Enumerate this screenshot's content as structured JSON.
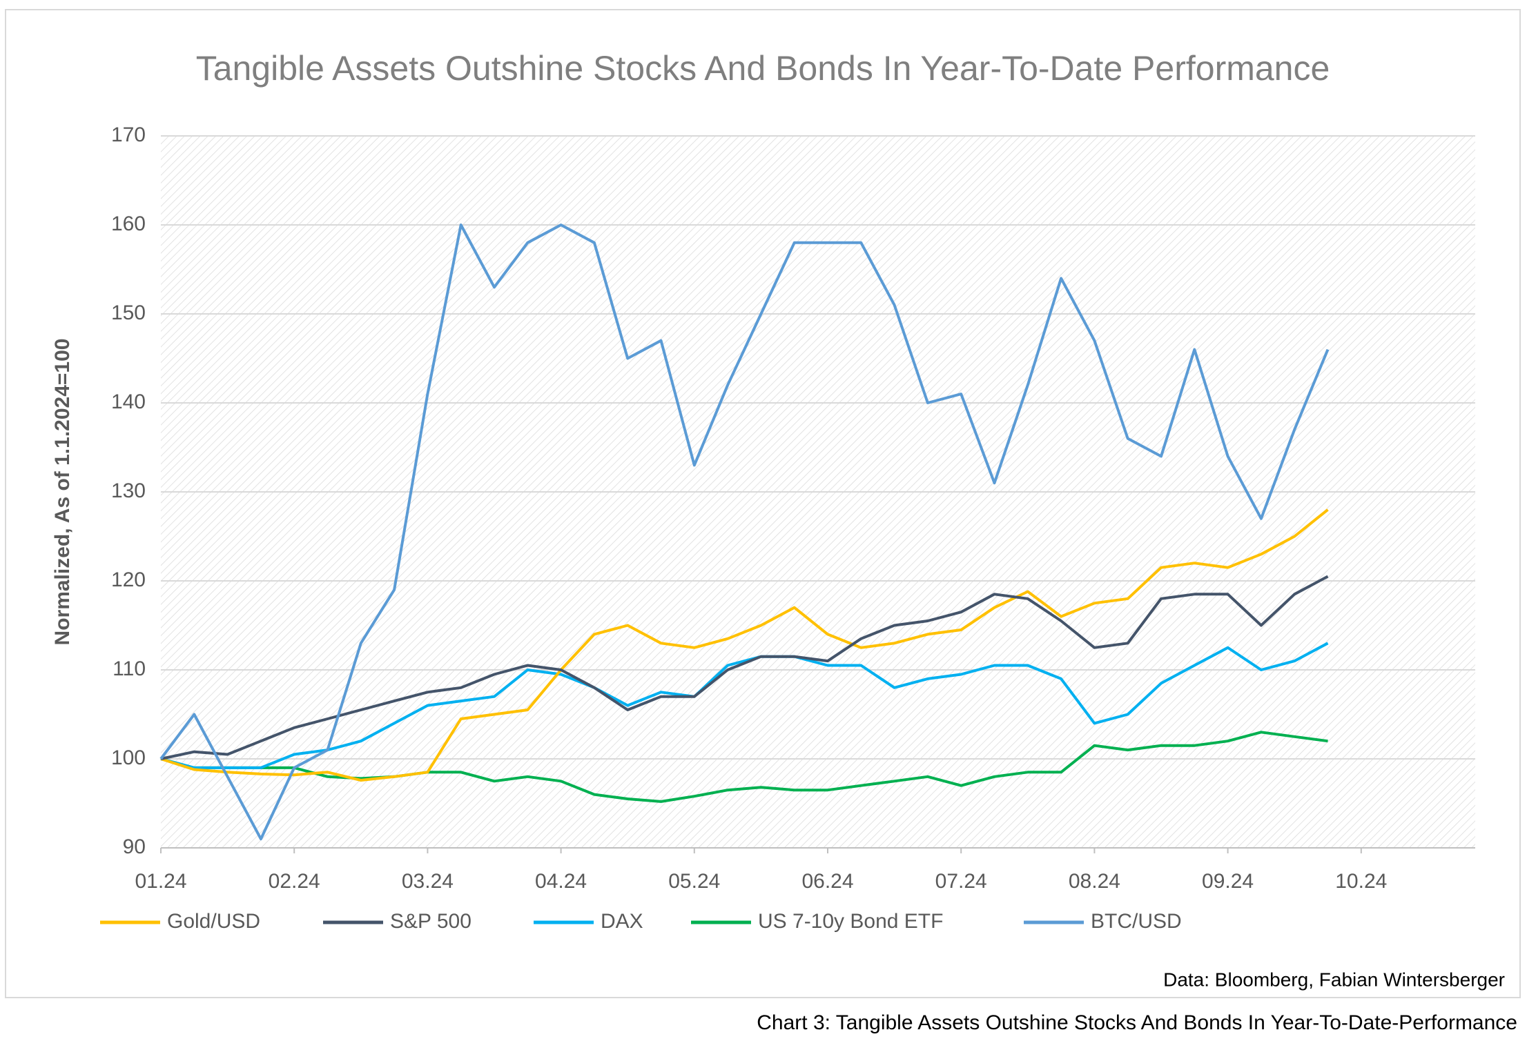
{
  "chart_data": {
    "type": "line",
    "title": "Tangible Assets Outshine Stocks And Bonds In Year-To-Date Performance",
    "y_label": "Normalized, As of 1.1.2024=100",
    "source": "Data: Bloomberg, Fabian Wintersberger",
    "caption": "Chart 3: Tangible Assets Outshine Stocks And Bonds In Year-To-Date-Performance",
    "categories": [
      "01.24",
      null,
      null,
      null,
      "02.24",
      null,
      null,
      null,
      "03.24",
      null,
      null,
      null,
      "04.24",
      null,
      null,
      null,
      "05.24",
      null,
      null,
      null,
      "06.24",
      null,
      null,
      null,
      "07.24",
      null,
      null,
      null,
      "08.24",
      null,
      null,
      null,
      "09.24",
      null,
      null,
      null,
      "10.24"
    ],
    "ylim": [
      90,
      170
    ],
    "yticks": [
      90,
      100,
      110,
      120,
      130,
      140,
      150,
      160,
      170
    ],
    "grid": true,
    "legend": "bottom",
    "series": [
      {
        "name": "Gold/USD",
        "color": "#ffc000",
        "values": [
          100,
          98.8,
          98.5,
          98.3,
          98.2,
          98.5,
          97.6,
          98,
          98.5,
          104.5,
          105,
          105.5,
          110,
          114,
          115,
          113,
          112.5,
          113.5,
          115,
          117,
          114,
          112.5,
          113,
          114,
          114.5,
          117,
          118.8,
          116,
          117.5,
          118,
          121.5,
          122,
          121.5,
          123,
          125,
          128,
          null
        ]
      },
      {
        "name": "S&P 500",
        "color": "#44546a",
        "values": [
          100,
          100.8,
          100.5,
          102,
          103.5,
          104.5,
          105.5,
          106.5,
          107.5,
          108,
          109.5,
          110.5,
          110,
          108,
          105.5,
          107,
          107,
          110,
          111.5,
          111.5,
          111,
          113.5,
          115,
          115.5,
          116.5,
          118.5,
          118,
          115.5,
          112.5,
          113,
          118,
          118.5,
          118.5,
          115,
          118.5,
          120.5,
          null
        ]
      },
      {
        "name": "DAX",
        "color": "#00b0f0",
        "values": [
          100,
          99,
          99,
          99,
          100.5,
          101,
          102,
          104,
          106,
          106.5,
          107,
          110,
          109.5,
          108,
          106,
          107.5,
          107,
          110.5,
          111.5,
          111.5,
          110.5,
          110.5,
          108,
          109,
          109.5,
          110.5,
          110.5,
          109,
          104,
          105,
          108.5,
          110.5,
          112.5,
          110,
          111,
          113,
          null
        ]
      },
      {
        "name": "US 7-10y Bond ETF",
        "color": "#00b050",
        "values": [
          100,
          99,
          99,
          99,
          99,
          98,
          97.8,
          98,
          98.5,
          98.5,
          97.5,
          98,
          97.5,
          96,
          95.5,
          95.2,
          95.8,
          96.5,
          96.8,
          96.5,
          96.5,
          97,
          97.5,
          98,
          97,
          98,
          98.5,
          98.5,
          101.5,
          101,
          101.5,
          101.5,
          102,
          103,
          102.5,
          102,
          null
        ]
      },
      {
        "name": "BTC/USD",
        "color": "#5b9bd5",
        "values": [
          100,
          105,
          98,
          91,
          99,
          101,
          113,
          119,
          141,
          160,
          153,
          158,
          160,
          158,
          145,
          147,
          133,
          142,
          150,
          158,
          158,
          158,
          151,
          140,
          141,
          131,
          142,
          154,
          147,
          136,
          134,
          146,
          134,
          127,
          137,
          146,
          null
        ]
      }
    ]
  }
}
